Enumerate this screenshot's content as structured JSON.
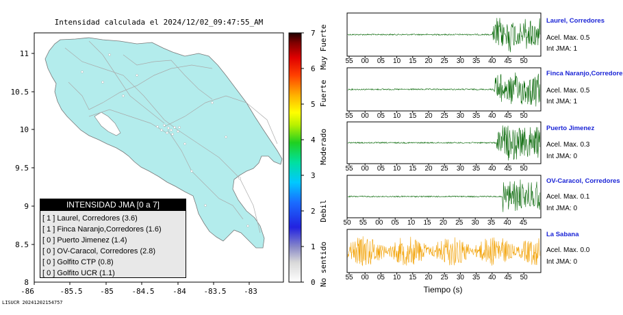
{
  "chart_data": [
    {
      "type": "map",
      "title": "Intensidad calculada el 2024/12/02_09:47:55_AM",
      "x_ticks": [
        "-86",
        "-85.5",
        "-85",
        "-84.5",
        "-84",
        "-83.5",
        "-83"
      ],
      "y_ticks": [
        "11",
        "10.5",
        "10",
        "9.5",
        "9",
        "8.5",
        "8"
      ],
      "xlim": [
        -86.0,
        -82.6
      ],
      "ylim": [
        8.0,
        11.3
      ],
      "land_color": "#b3ecec",
      "colorbar": {
        "ticks": [
          "0",
          "1",
          "2",
          "3",
          "4",
          "5",
          "6",
          "7"
        ],
        "range": [
          0,
          7
        ],
        "labels": [
          {
            "text": "No sentido",
            "value": 0.5
          },
          {
            "text": "Debil",
            "value": 2.0
          },
          {
            "text": "Moderado",
            "value": 3.8
          },
          {
            "text": "Fuerte",
            "value": 5.3
          },
          {
            "text": "Muy Fuerte",
            "value": 6.6
          }
        ]
      },
      "legend": {
        "title": "INTENSIDAD JMA [0 a 7]",
        "items": [
          "[ 1 ]  Laurel, Corredores (3.6)",
          "[ 1 ]  Finca Naranjo,Corredores (1.6)",
          "[ 0 ]  Puerto Jimenez (1.4)",
          "[ 0 ]  OV-Caracol, Corredores (2.8)",
          "[ 0 ]  Golfito CTP (0.8)",
          "[ 0 ]  Golfito UCR (1.1)"
        ]
      }
    },
    {
      "type": "line",
      "xlabel": "Tiempo (s)",
      "series": [
        {
          "name": "Laurel, Corredores",
          "max_label": "Acel. Max. 0.5",
          "jma_label": "Int JMA: 1",
          "color": "#006400",
          "ticks": [
            "55",
            "00",
            "05",
            "10",
            "15",
            "20",
            "25",
            "30",
            "35",
            "40",
            "45",
            "50"
          ],
          "onset": 40.2,
          "amplitude": 0.9
        },
        {
          "name": "Finca Naranjo,Corredores",
          "max_label": "Acel. Max. 0.5",
          "jma_label": "Int JMA: 1",
          "color": "#006400",
          "ticks": [
            "55",
            "00",
            "05",
            "10",
            "15",
            "20",
            "25",
            "30",
            "35",
            "40",
            "45",
            "50"
          ],
          "onset": 40.5,
          "amplitude": 0.9
        },
        {
          "name": "Puerto Jimenez",
          "max_label": "Acel. Max. 0.3",
          "jma_label": "Int JMA: 0",
          "color": "#006400",
          "ticks": [
            "55",
            "00",
            "05",
            "10",
            "15",
            "20",
            "25",
            "30",
            "35",
            "40",
            "45",
            "50"
          ],
          "onset": 41.5,
          "amplitude": 0.95
        },
        {
          "name": "OV-Caracol, Corredores",
          "max_label": "Acel. Max. 0.1",
          "jma_label": "Int JMA: 0",
          "color": "#006400",
          "ticks": [
            "50",
            "55",
            "00",
            "05",
            "10",
            "15",
            "20",
            "25",
            "30",
            "35",
            "40",
            "45"
          ],
          "onset": 43.5,
          "amplitude": 0.85
        },
        {
          "name": "La Sabana",
          "max_label": "Acel. Max. 0.0",
          "jma_label": "Int JMA: 0",
          "color": "#f2a000",
          "ticks": [
            "55",
            "00",
            "05",
            "10",
            "15",
            "20",
            "25",
            "30",
            "35",
            "40",
            "45",
            "50"
          ],
          "onset": 0,
          "amplitude": 0.7
        }
      ]
    }
  ],
  "footer": "LISUCR 20241202154757"
}
